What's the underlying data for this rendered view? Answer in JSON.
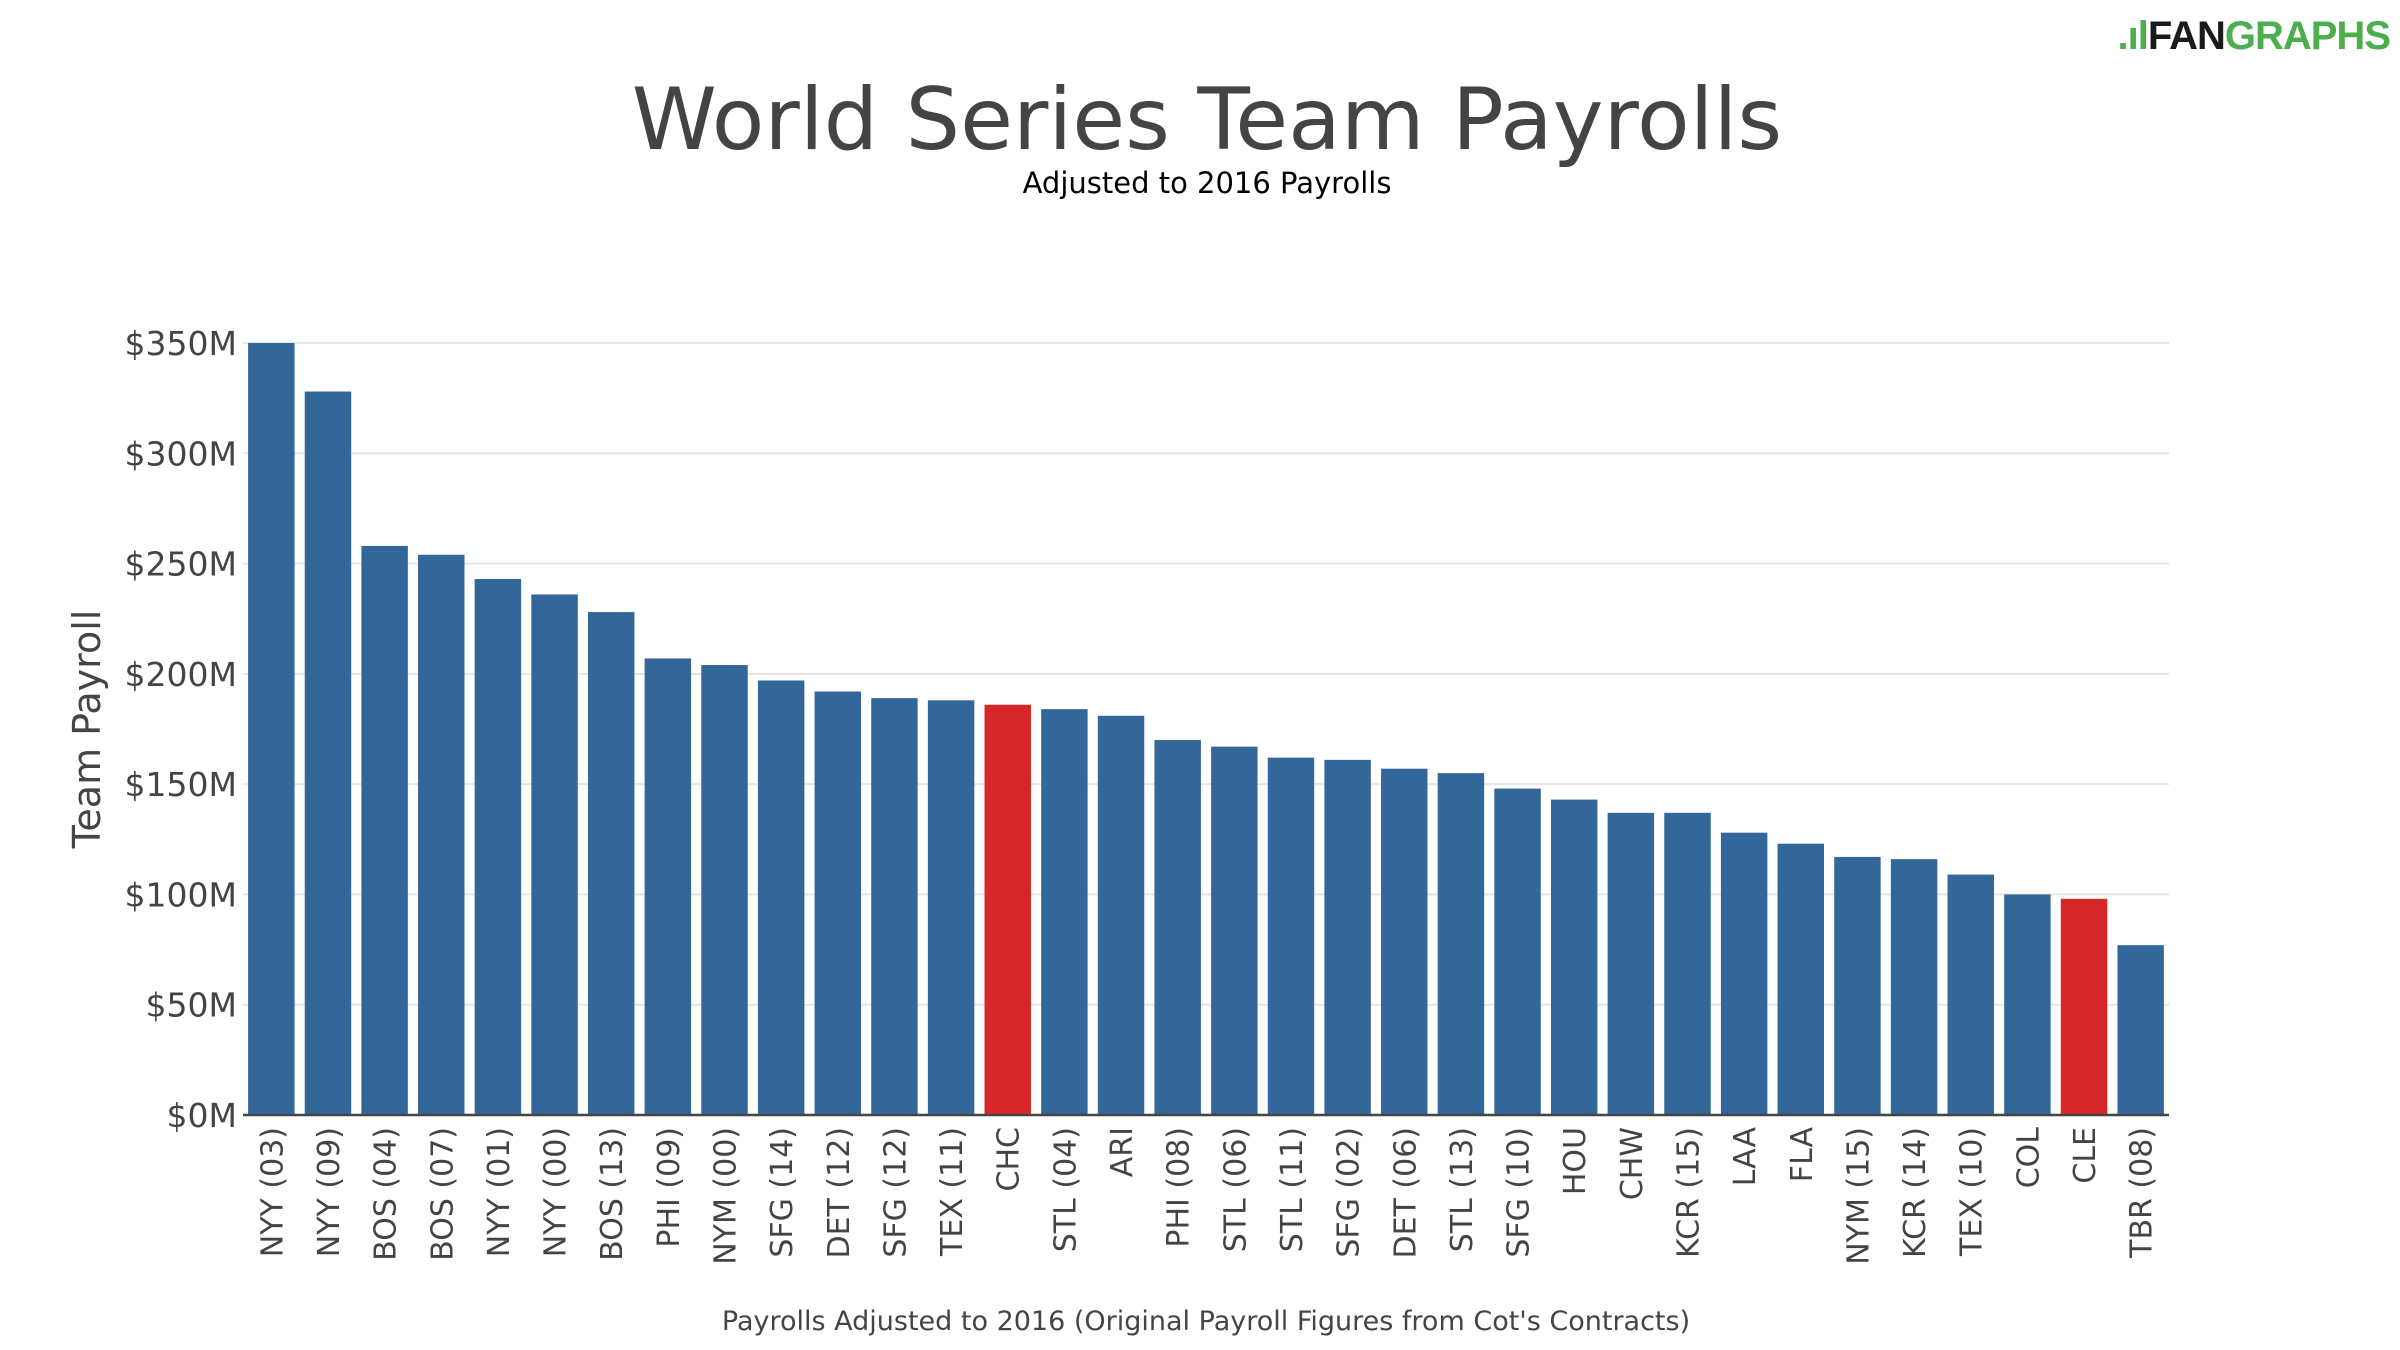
{
  "logo": {
    "text_dark": "FAN",
    "text_green": "GRAPHS",
    "green": "#4cae4c",
    "dark": "#1a1a1a"
  },
  "chart_data": {
    "type": "bar",
    "title": "World Series Team Payrolls",
    "subtitle": "Adjusted to 2016 Payrolls",
    "xlabel": "Payrolls Adjusted to 2016 (Original Payroll Figures from Cot's Contracts)",
    "ylabel": "Team Payroll",
    "ylim": [
      0,
      350
    ],
    "yticks": [
      0,
      50,
      100,
      150,
      200,
      250,
      300,
      350
    ],
    "ytick_labels": [
      "$0M",
      "$50M",
      "$100M",
      "$150M",
      "$200M",
      "$250M",
      "$300M",
      "$350M"
    ],
    "grid": true,
    "categories": [
      "NYY (03)",
      "NYY (09)",
      "BOS (04)",
      "BOS (07)",
      "NYY (01)",
      "NYY (00)",
      "BOS (13)",
      "PHI (09)",
      "NYM (00)",
      "SFG (14)",
      "DET (12)",
      "SFG (12)",
      "TEX (11)",
      "CHC",
      "STL (04)",
      "ARI",
      "PHI (08)",
      "STL (06)",
      "STL (11)",
      "SFG (02)",
      "DET (06)",
      "STL (13)",
      "SFG (10)",
      "HOU",
      "CHW",
      "KCR (15)",
      "LAA",
      "FLA",
      "NYM (15)",
      "KCR (14)",
      "TEX (10)",
      "COL",
      "CLE",
      "TBR (08)"
    ],
    "values": [
      350,
      328,
      258,
      254,
      243,
      236,
      228,
      207,
      204,
      197,
      192,
      189,
      188,
      186,
      184,
      181,
      170,
      167,
      162,
      161,
      157,
      155,
      148,
      143,
      137,
      137,
      128,
      123,
      117,
      116,
      109,
      100,
      98,
      77
    ],
    "highlight": [
      "CHC",
      "CLE"
    ],
    "colors": {
      "default": "#336699",
      "highlight": "#d62728",
      "grid": "#e6e6e6",
      "axis": "#444444"
    }
  }
}
